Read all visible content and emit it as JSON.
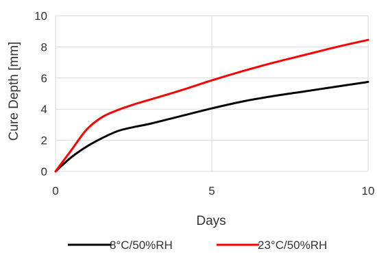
{
  "chart_data": {
    "type": "line",
    "title": "",
    "xlabel": "Days",
    "ylabel": "Cure Depth [mm]",
    "xlim": [
      0,
      10
    ],
    "ylim": [
      0,
      10
    ],
    "x_ticks": [
      "0",
      "5",
      "10"
    ],
    "y_ticks": [
      "0",
      "2",
      "4",
      "6",
      "8",
      "10"
    ],
    "grid": true,
    "legend_position": "bottom",
    "series": [
      {
        "name": "8°C/50%RH",
        "color": "#000000",
        "x": [
          0,
          0.5,
          1,
          1.5,
          2,
          2.5,
          3,
          4,
          5,
          6,
          7,
          8,
          9,
          10
        ],
        "y": [
          0,
          0.9,
          1.6,
          2.15,
          2.6,
          2.85,
          3.05,
          3.55,
          4.05,
          4.5,
          4.85,
          5.15,
          5.45,
          5.75
        ]
      },
      {
        "name": "23°C/50%RH",
        "color": "#ff0000",
        "x": [
          0,
          0.5,
          1,
          1.5,
          2,
          2.5,
          3,
          4,
          5,
          6,
          7,
          8,
          9,
          10
        ],
        "y": [
          0,
          1.35,
          2.7,
          3.5,
          3.95,
          4.3,
          4.6,
          5.2,
          5.85,
          6.45,
          7.0,
          7.5,
          8.0,
          8.45
        ]
      }
    ]
  }
}
